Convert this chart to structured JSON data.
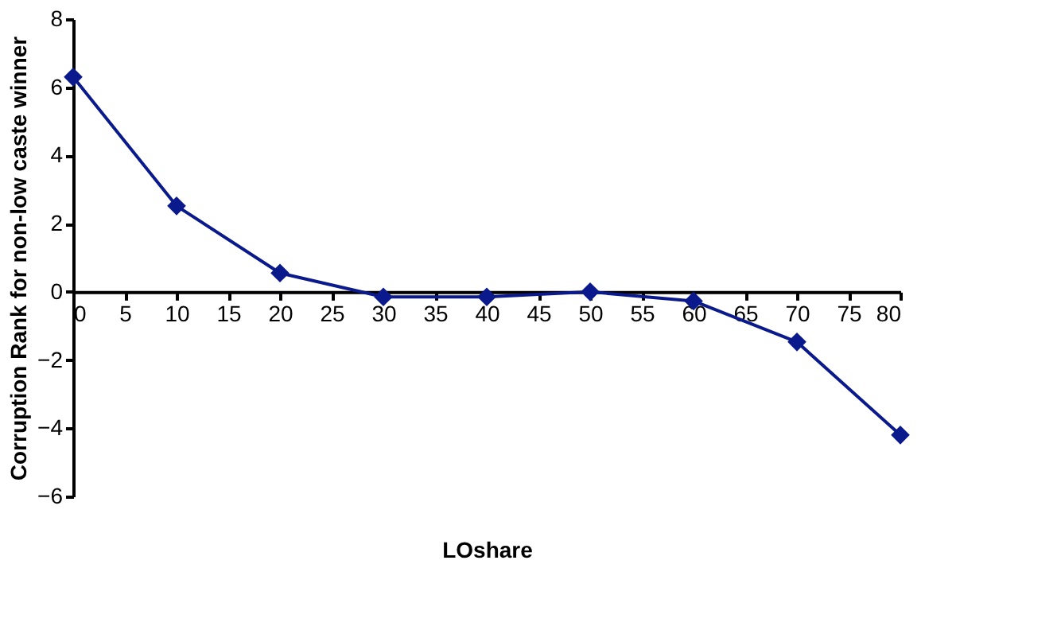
{
  "chart_data": {
    "type": "line",
    "xlabel": "LOshare",
    "ylabel": "Corruption Rank for non-low caste winner",
    "x": [
      0,
      10,
      20,
      30,
      40,
      50,
      60,
      70,
      80
    ],
    "series": [
      {
        "color": "#0a1a8c",
        "values": [
          6.3,
          2.52,
          0.55,
          -0.15,
          -0.15,
          0.0,
          -0.27,
          -1.47,
          -4.2
        ]
      }
    ],
    "xlim": [
      0,
      80
    ],
    "xticks": [
      0,
      5,
      10,
      15,
      20,
      25,
      30,
      35,
      40,
      45,
      50,
      55,
      60,
      65,
      70,
      75,
      80
    ],
    "ylim": [
      -6,
      8
    ],
    "yticks": [
      -6,
      -4,
      -2,
      0,
      2,
      4,
      6,
      8
    ],
    "marker": "diamond",
    "line_style": "solid",
    "grid": false
  }
}
